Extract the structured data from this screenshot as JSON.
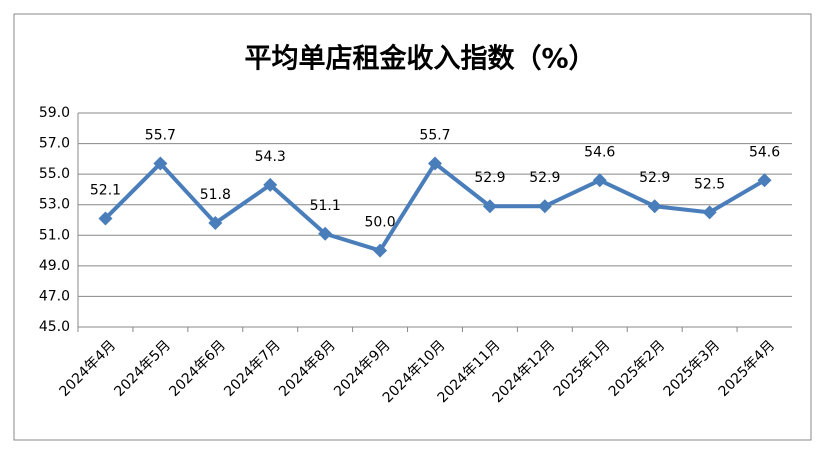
{
  "chart_data": {
    "type": "line",
    "title": "平均单店租金收入指数（%）",
    "categories": [
      "2024年4月",
      "2024年5月",
      "2024年6月",
      "2024年7月",
      "2024年8月",
      "2024年9月",
      "2024年10月",
      "2024年11月",
      "2024年12月",
      "2025年1月",
      "2025年2月",
      "2025年3月",
      "2025年4月"
    ],
    "values": [
      52.1,
      55.7,
      51.8,
      54.3,
      51.1,
      50.0,
      55.7,
      52.9,
      52.9,
      54.6,
      52.9,
      52.5,
      54.6
    ],
    "value_labels": [
      "52.1",
      "55.7",
      "51.8",
      "54.3",
      "51.1",
      "50.0",
      "55.7",
      "52.9",
      "52.9",
      "54.6",
      "52.9",
      "52.5",
      "54.6"
    ],
    "color": "#4a7ebb",
    "ylim": [
      45,
      59
    ],
    "yticks": [
      {
        "value": 45,
        "label": "45.0"
      },
      {
        "value": 47,
        "label": "47.0"
      },
      {
        "value": 49,
        "label": "49.0"
      },
      {
        "value": 51,
        "label": "51.0"
      },
      {
        "value": 53,
        "label": "53.0"
      },
      {
        "value": 55,
        "label": "55.0"
      },
      {
        "value": 57,
        "label": "57.0"
      },
      {
        "value": 59,
        "label": "59.0"
      }
    ],
    "grid": true
  }
}
